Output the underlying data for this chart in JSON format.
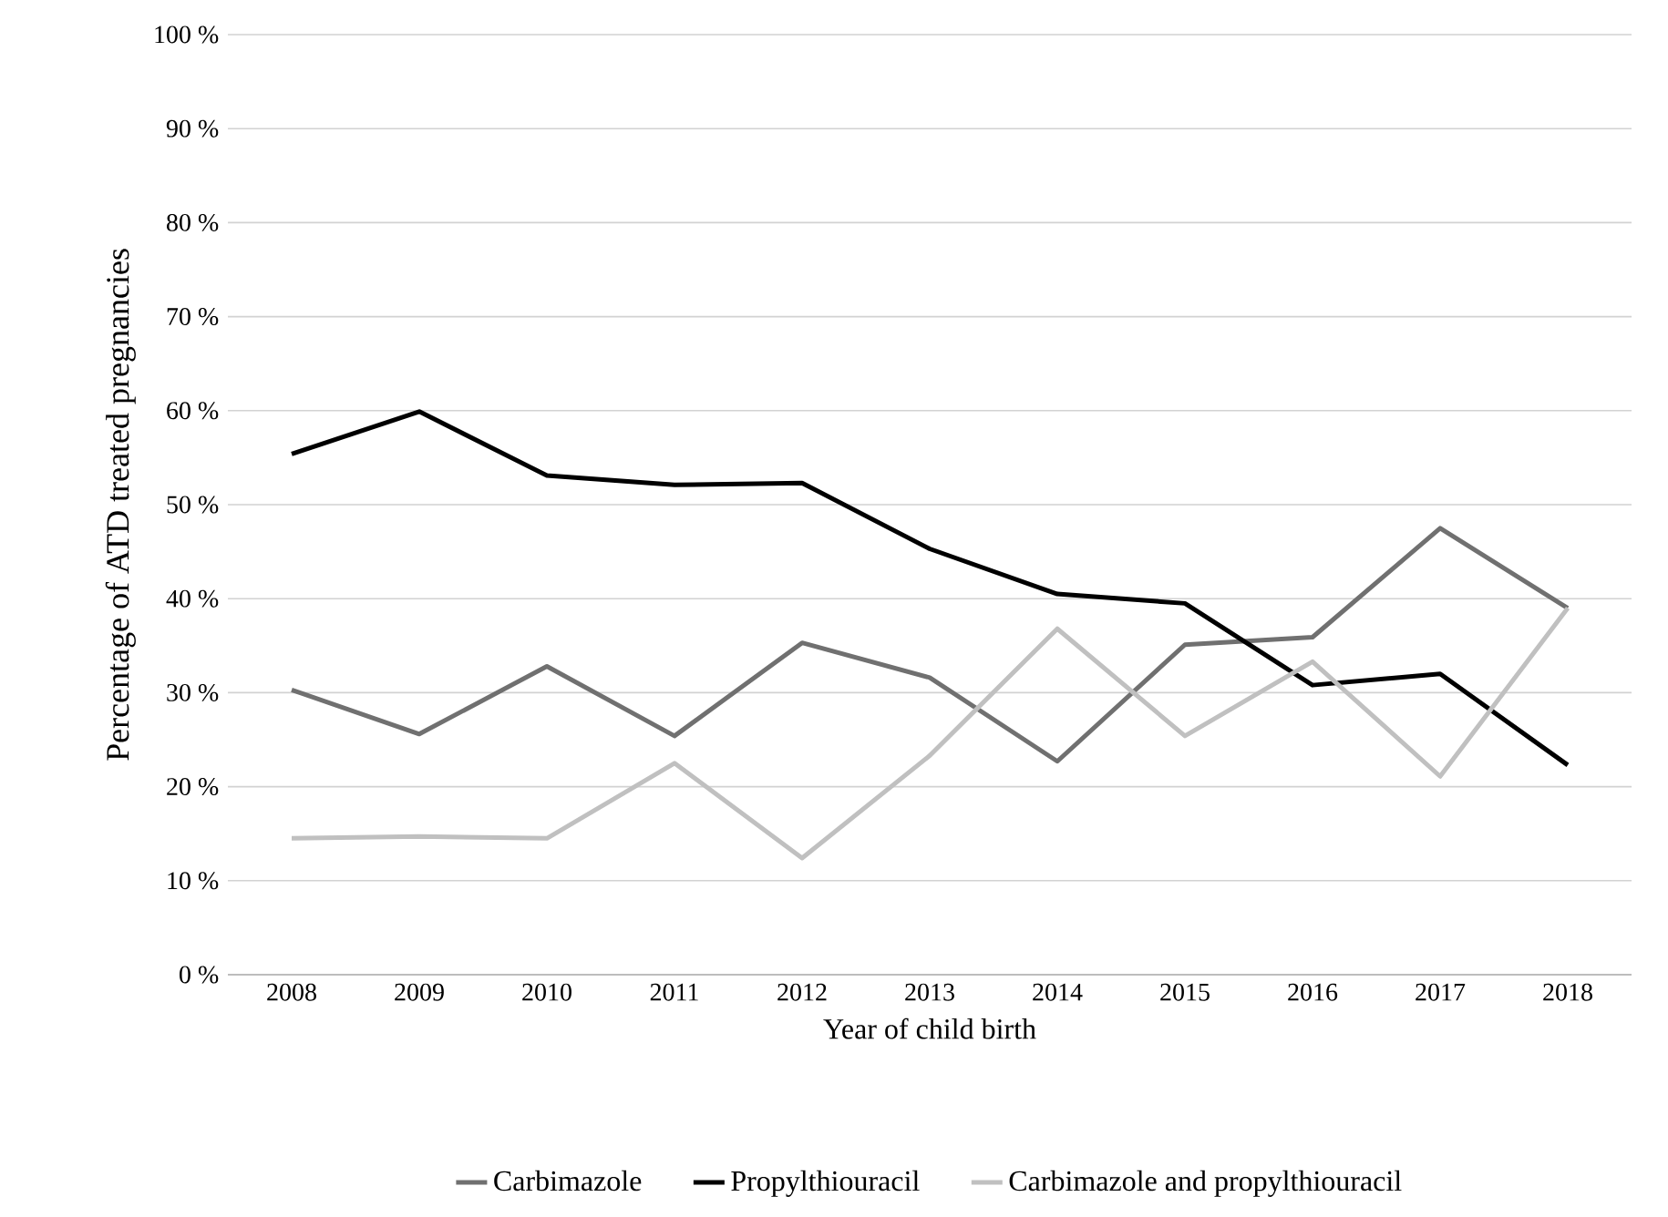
{
  "chart_data": {
    "type": "line",
    "xlabel": "Year of child birth",
    "ylabel": "Percentage of ATD treated pregnancies",
    "categories": [
      "2008",
      "2009",
      "2010",
      "2011",
      "2012",
      "2013",
      "2014",
      "2015",
      "2016",
      "2017",
      "2018"
    ],
    "series": [
      {
        "name": "Carbimazole",
        "color": "#707070",
        "values": [
          30.3,
          25.6,
          32.8,
          25.4,
          35.3,
          31.6,
          22.7,
          35.1,
          35.9,
          47.5,
          39.0
        ]
      },
      {
        "name": "Propylthiouracil",
        "color": "#000000",
        "values": [
          55.4,
          59.9,
          53.1,
          52.1,
          52.3,
          45.3,
          40.5,
          39.5,
          30.8,
          32.0,
          22.3
        ]
      },
      {
        "name": "Carbimazole and propylthiouracil",
        "color": "#c0c0c0",
        "values": [
          14.5,
          14.7,
          14.5,
          22.5,
          12.4,
          23.3,
          36.8,
          25.4,
          33.3,
          21.1,
          39.0
        ]
      }
    ],
    "ylim": [
      0,
      100
    ],
    "yticks": [
      {
        "value": 0,
        "label": "0 %"
      },
      {
        "value": 10,
        "label": "10 %"
      },
      {
        "value": 20,
        "label": "20 %"
      },
      {
        "value": 30,
        "label": "30 %"
      },
      {
        "value": 40,
        "label": "40 %"
      },
      {
        "value": 50,
        "label": "50 %"
      },
      {
        "value": 60,
        "label": "60 %"
      },
      {
        "value": 70,
        "label": "70 %"
      },
      {
        "value": 80,
        "label": "80 %"
      },
      {
        "value": 90,
        "label": "90 %"
      },
      {
        "value": 100,
        "label": "100 %"
      }
    ],
    "grid": "y",
    "legend": "bottom",
    "marker": "none",
    "line_style": "solid"
  }
}
